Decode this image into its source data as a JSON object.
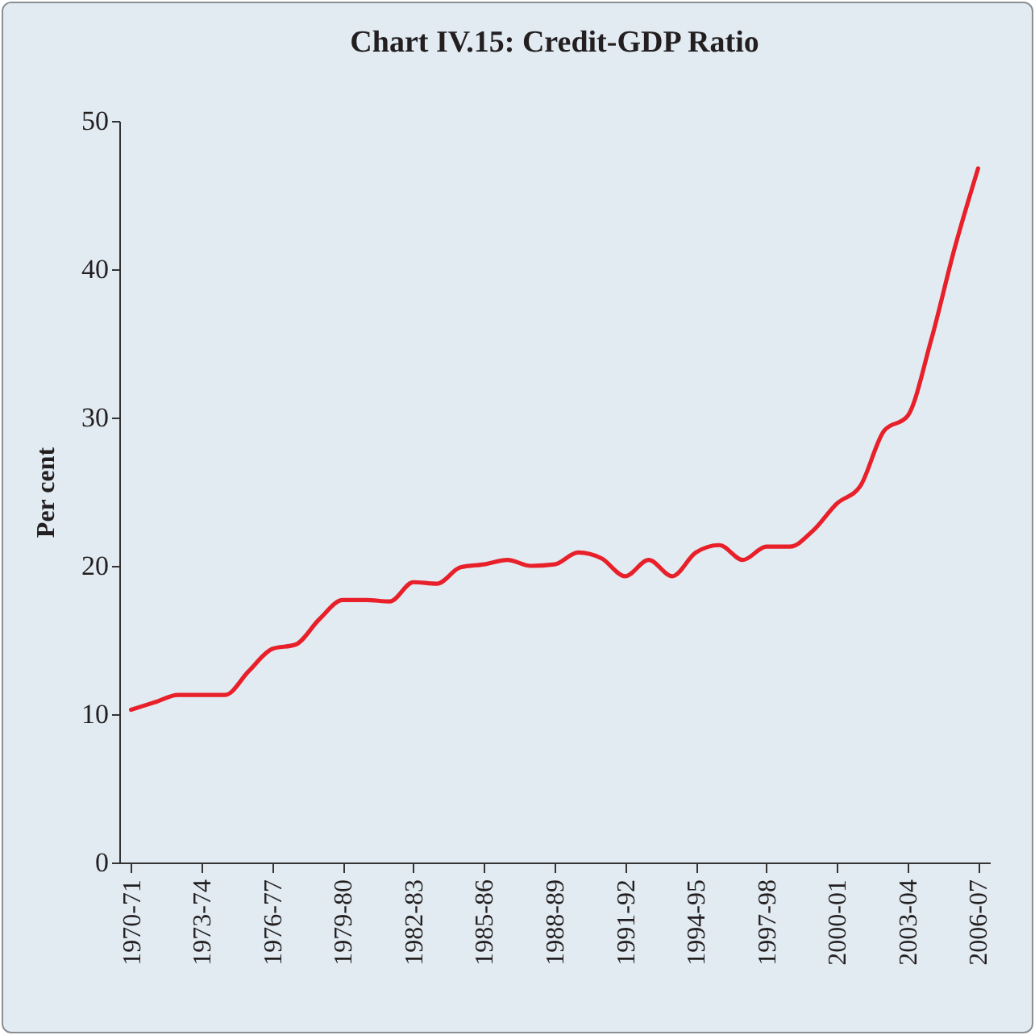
{
  "chart_data": {
    "type": "line",
    "title": "Chart IV.15: Credit-GDP Ratio",
    "ylabel": "Per cent",
    "categories": [
      "1970-71",
      null,
      null,
      "1973-74",
      null,
      null,
      "1976-77",
      null,
      null,
      "1979-80",
      null,
      null,
      "1982-83",
      null,
      null,
      "1985-86",
      null,
      null,
      "1988-89",
      null,
      null,
      "1991-92",
      null,
      null,
      "1994-95",
      null,
      null,
      "1997-98",
      null,
      null,
      "2000-01",
      null,
      null,
      "2003-04",
      null,
      null,
      "2006-07"
    ],
    "series": [
      {
        "color": "#e8202a",
        "values": [
          10.3,
          10.8,
          11.3,
          11.3,
          11.3,
          12.9,
          14.4,
          14.7,
          16.4,
          17.7,
          17.7,
          17.6,
          18.9,
          18.8,
          19.9,
          20.1,
          20.4,
          20.0,
          20.1,
          20.9,
          20.5,
          19.3,
          20.4,
          19.3,
          20.9,
          21.4,
          20.4,
          21.3,
          21.3,
          22.4,
          24.2,
          25.4,
          29.1,
          30.1,
          35.2,
          41.4,
          46.8
        ]
      }
    ],
    "ylim": [
      0,
      50
    ],
    "yticks": [
      0,
      10,
      20,
      30,
      40,
      50
    ],
    "grid": false,
    "legend": false,
    "marker": "none",
    "line_style": "solid"
  }
}
